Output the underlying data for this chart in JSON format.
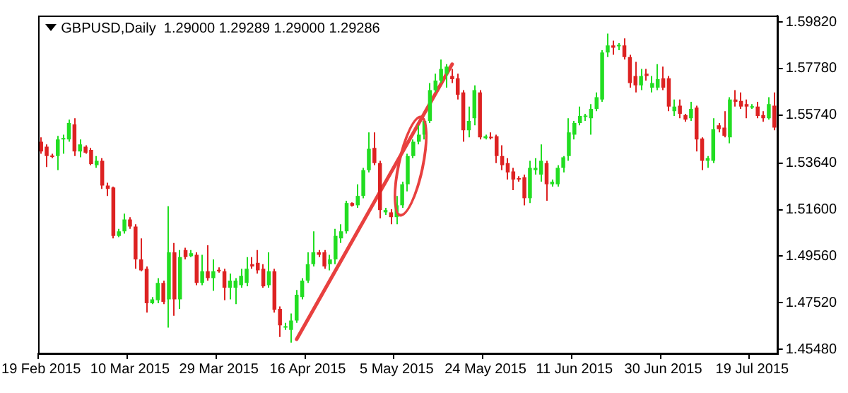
{
  "chart_data": {
    "type": "candlestick",
    "title": "GBPUSD,Daily  1.29000 1.29289 1.29000 1.29286",
    "categories": [
      "19 Feb 2015",
      null,
      null,
      null,
      null,
      null,
      null,
      null,
      null,
      null,
      null,
      null,
      null,
      null,
      null,
      null,
      "10 Mar 2015",
      null,
      null,
      null,
      null,
      null,
      null,
      null,
      null,
      null,
      null,
      null,
      null,
      null,
      null,
      null,
      "29 Mar 2015",
      null,
      null,
      null,
      null,
      null,
      null,
      null,
      null,
      null,
      null,
      null,
      null,
      null,
      null,
      null,
      "16 Apr 2015",
      null,
      null,
      null,
      null,
      null,
      null,
      null,
      null,
      null,
      null,
      null,
      null,
      null,
      null,
      null,
      "5 May 2015",
      null,
      null,
      null,
      null,
      null,
      null,
      null,
      null,
      null,
      null,
      null,
      null,
      null,
      null,
      null,
      "24 May 2015",
      null,
      null,
      null,
      null,
      null,
      null,
      null,
      null,
      null,
      null,
      null,
      null,
      null,
      null,
      null,
      "11 Jun 2015",
      null,
      null,
      null,
      null,
      null,
      null,
      null,
      null,
      null,
      null,
      null,
      null,
      null,
      null,
      null,
      "30 Jun 2015",
      null,
      null,
      null,
      null,
      null,
      null,
      null,
      null,
      null,
      null,
      null,
      null,
      null,
      null,
      null,
      "19 Jul 2015",
      null,
      null,
      null,
      null
    ],
    "ohlc": [
      [
        1.5457,
        1.5477,
        1.5405,
        1.5415
      ],
      [
        1.5436,
        1.5446,
        1.5347,
        1.5395
      ],
      [
        1.5395,
        1.5405,
        1.5385,
        1.5391
      ],
      [
        1.5395,
        1.5483,
        1.5333,
        1.5467
      ],
      [
        1.5467,
        1.5488,
        1.5405,
        1.5471
      ],
      [
        1.5467,
        1.5554,
        1.5457,
        1.5539
      ],
      [
        1.5533,
        1.556,
        1.5395,
        1.5415
      ],
      [
        1.5415,
        1.5467,
        1.5389,
        1.5446
      ],
      [
        1.5436,
        1.5442,
        1.5405,
        1.5409
      ],
      [
        1.5422,
        1.543,
        1.5354,
        1.536
      ],
      [
        1.5354,
        1.5395,
        1.5343,
        1.5374
      ],
      [
        1.5374,
        1.5385,
        1.5251,
        1.5265
      ],
      [
        1.5265,
        1.5278,
        1.522,
        1.5251
      ],
      [
        1.5257,
        1.5261,
        1.5034,
        1.5045
      ],
      [
        1.5045,
        1.5076,
        1.5039,
        1.5065
      ],
      [
        1.5065,
        1.5142,
        1.5055,
        1.5117
      ],
      [
        1.5117,
        1.5127,
        1.5076,
        1.5086
      ],
      [
        1.5086,
        1.5096,
        1.4901,
        1.4942
      ],
      [
        1.4942,
        1.5034,
        1.489,
        1.4894
      ],
      [
        1.4901,
        1.4911,
        1.4709,
        1.475
      ],
      [
        1.475,
        1.4777,
        1.4746,
        1.4767
      ],
      [
        1.4763,
        1.486,
        1.475,
        1.4839
      ],
      [
        1.4839,
        1.4849,
        1.4746,
        1.4756
      ],
      [
        1.4767,
        1.5175,
        1.4643,
        1.4973
      ],
      [
        1.4973,
        1.5014,
        1.4695,
        1.4767
      ],
      [
        1.4767,
        1.4983,
        1.4725,
        1.4952
      ],
      [
        1.4983,
        1.4993,
        1.4942,
        1.4952
      ],
      [
        1.4956,
        1.4983,
        1.4952,
        1.4969
      ],
      [
        1.4962,
        1.4973,
        1.4829,
        1.4839
      ],
      [
        1.4839,
        1.4962,
        1.4829,
        1.489
      ],
      [
        1.489,
        1.5004,
        1.4849,
        1.486
      ],
      [
        1.486,
        1.4942,
        1.4804,
        1.489
      ],
      [
        1.4894,
        1.4907,
        1.4884,
        1.489
      ],
      [
        1.489,
        1.4901,
        1.4763,
        1.4818
      ],
      [
        1.4818,
        1.488,
        1.4767,
        1.4849
      ],
      [
        1.4818,
        1.486,
        1.4746,
        1.4849
      ],
      [
        1.4829,
        1.4901,
        1.4818,
        1.487
      ],
      [
        1.4839,
        1.4952,
        1.4824,
        1.4901
      ],
      [
        1.4921,
        1.4952,
        1.4901,
        1.4911
      ],
      [
        1.4927,
        1.4983,
        1.488,
        1.4894
      ],
      [
        1.4901,
        1.4921,
        1.4818,
        1.4824
      ],
      [
        1.4829,
        1.4973,
        1.4818,
        1.489
      ],
      [
        1.489,
        1.4901,
        1.4709,
        1.4721
      ],
      [
        1.4725,
        1.4736,
        1.4602,
        1.4653
      ],
      [
        1.4643,
        1.4664,
        1.4633,
        1.4649
      ],
      [
        1.4633,
        1.4705,
        1.4577,
        1.4674
      ],
      [
        1.4674,
        1.4808,
        1.4664,
        1.4787
      ],
      [
        1.4777,
        1.486,
        1.4767,
        1.4849
      ],
      [
        1.4849,
        1.4973,
        1.4839,
        1.4921
      ],
      [
        1.4921,
        1.5065,
        1.4911,
        1.4973
      ],
      [
        1.4973,
        1.4983,
        1.4952,
        1.4962
      ],
      [
        1.4973,
        1.4983,
        1.4901,
        1.4911
      ],
      [
        1.4921,
        1.4962,
        1.4894,
        1.4942
      ],
      [
        1.4942,
        1.5076,
        1.4921,
        1.5045
      ],
      [
        1.5034,
        1.5096,
        1.5014,
        1.5065
      ],
      [
        1.5065,
        1.5199,
        1.5055,
        1.5189
      ],
      [
        1.5189,
        1.5192,
        1.5173,
        1.5177
      ],
      [
        1.5179,
        1.5271,
        1.5168,
        1.522
      ],
      [
        1.522,
        1.5343,
        1.521,
        1.5333
      ],
      [
        1.5333,
        1.5498,
        1.5323,
        1.5426
      ],
      [
        1.543,
        1.5498,
        1.5354,
        1.5364
      ],
      [
        1.5364,
        1.5374,
        1.5121,
        1.5158
      ],
      [
        1.5148,
        1.5168,
        1.5137,
        1.5158
      ],
      [
        1.5148,
        1.5162,
        1.5096,
        1.5127
      ],
      [
        1.5127,
        1.522,
        1.5096,
        1.5179
      ],
      [
        1.5179,
        1.5282,
        1.5168,
        1.5271
      ],
      [
        1.5271,
        1.5405,
        1.524,
        1.5395
      ],
      [
        1.5395,
        1.5467,
        1.5385,
        1.5457
      ],
      [
        1.5457,
        1.5529,
        1.5446,
        1.5488
      ],
      [
        1.5488,
        1.556,
        1.5467,
        1.5549
      ],
      [
        1.5549,
        1.5714,
        1.5539,
        1.5683
      ],
      [
        1.5683,
        1.5755,
        1.5673,
        1.5725
      ],
      [
        1.5725,
        1.5817,
        1.5714,
        1.5776
      ],
      [
        1.5755,
        1.5797,
        1.5694,
        1.5786
      ],
      [
        1.5745,
        1.5776,
        1.5714,
        1.5731
      ],
      [
        1.5735,
        1.5755,
        1.5642,
        1.5663
      ],
      [
        1.5673,
        1.5683,
        1.5457,
        1.5508
      ],
      [
        1.5508,
        1.5611,
        1.5477,
        1.5549
      ],
      [
        1.556,
        1.5704,
        1.5529,
        1.5683
      ],
      [
        1.5673,
        1.5683,
        1.5467,
        1.5477
      ],
      [
        1.5473,
        1.5488,
        1.5467,
        1.5481
      ],
      [
        1.5477,
        1.5498,
        1.5467,
        1.5473
      ],
      [
        1.5481,
        1.5488,
        1.5364,
        1.5395
      ],
      [
        1.5395,
        1.5442,
        1.5333,
        1.5354
      ],
      [
        1.5364,
        1.5385,
        1.5292,
        1.5323
      ],
      [
        1.5327,
        1.5343,
        1.5245,
        1.5292
      ],
      [
        1.5296,
        1.5306,
        1.5282,
        1.5292
      ],
      [
        1.5302,
        1.5313,
        1.5179,
        1.521
      ],
      [
        1.521,
        1.5374,
        1.5189,
        1.5343
      ],
      [
        1.5333,
        1.5385,
        1.5313,
        1.5343
      ],
      [
        1.5313,
        1.5446,
        1.5282,
        1.5374
      ],
      [
        1.5364,
        1.5374,
        1.5199,
        1.5271
      ],
      [
        1.5271,
        1.5292,
        1.5261,
        1.5282
      ],
      [
        1.5271,
        1.5354,
        1.5261,
        1.5343
      ],
      [
        1.5343,
        1.5395,
        1.5323,
        1.5389
      ],
      [
        1.5395,
        1.556,
        1.5374,
        1.5498
      ],
      [
        1.5488,
        1.5549,
        1.5467,
        1.5539
      ],
      [
        1.5539,
        1.5611,
        1.5529,
        1.557
      ],
      [
        1.5566,
        1.558,
        1.5549,
        1.557
      ],
      [
        1.556,
        1.5622,
        1.5488,
        1.5601
      ],
      [
        1.5601,
        1.5673,
        1.5591,
        1.5652
      ],
      [
        1.5642,
        1.5858,
        1.5632,
        1.5848
      ],
      [
        1.5848,
        1.5931,
        1.5828,
        1.5879
      ],
      [
        1.5879,
        1.59,
        1.5838,
        1.5869
      ],
      [
        1.5875,
        1.5889,
        1.5858,
        1.5879
      ],
      [
        1.5879,
        1.591,
        1.5817,
        1.5828
      ],
      [
        1.5828,
        1.5838,
        1.5694,
        1.5714
      ],
      [
        1.5745,
        1.5807,
        1.5673,
        1.5704
      ],
      [
        1.5704,
        1.5776,
        1.5683,
        1.5745
      ],
      [
        1.5755,
        1.5776,
        1.5725,
        1.5745
      ],
      [
        1.5694,
        1.5745,
        1.5673,
        1.5714
      ],
      [
        1.5694,
        1.5797,
        1.5683,
        1.5731
      ],
      [
        1.5735,
        1.5786,
        1.5683,
        1.5694
      ],
      [
        1.5735,
        1.5745,
        1.5591,
        1.5611
      ],
      [
        1.5591,
        1.5642,
        1.557,
        1.5611
      ],
      [
        1.5615,
        1.5642,
        1.556,
        1.558
      ],
      [
        1.5574,
        1.558,
        1.5545,
        1.5554
      ],
      [
        1.556,
        1.5632,
        1.5549,
        1.5601
      ],
      [
        1.5607,
        1.5615,
        1.5415,
        1.5467
      ],
      [
        1.5471,
        1.5477,
        1.5333,
        1.5374
      ],
      [
        1.5374,
        1.5395,
        1.5343,
        1.5385
      ],
      [
        1.5374,
        1.556,
        1.5364,
        1.5512
      ],
      [
        1.5529,
        1.5539,
        1.5498,
        1.5512
      ],
      [
        1.5519,
        1.5591,
        1.5477,
        1.5483
      ],
      [
        1.5477,
        1.5652,
        1.545,
        1.5642
      ],
      [
        1.5642,
        1.5683,
        1.5611,
        1.5632
      ],
      [
        1.5636,
        1.5673,
        1.5601,
        1.5611
      ],
      [
        1.5622,
        1.5642,
        1.556,
        1.5611
      ],
      [
        1.5607,
        1.5622,
        1.5601,
        1.5611
      ],
      [
        1.5611,
        1.5632,
        1.556,
        1.557
      ],
      [
        1.5574,
        1.5591,
        1.5545,
        1.556
      ],
      [
        1.556,
        1.5652,
        1.5554,
        1.5622
      ],
      [
        1.5615,
        1.5673,
        1.5508,
        1.5519
      ]
    ],
    "colors": [
      "#dd2222",
      "#dd2222",
      "#dd2222",
      "#22dd22",
      "#22dd22",
      "#22dd22",
      "#dd2222",
      "#22dd22",
      "#dd2222",
      "#dd2222",
      "#22dd22",
      "#dd2222",
      "#dd2222",
      "#dd2222",
      "#22dd22",
      "#22dd22",
      "#dd2222",
      "#dd2222",
      "#dd2222",
      "#dd2222",
      "#22dd22",
      "#22dd22",
      "#dd2222",
      "#22dd22",
      "#dd2222",
      "#22dd22",
      "#dd2222",
      "#22dd22",
      "#dd2222",
      "#22dd22",
      "#dd2222",
      "#22dd22",
      "#dd2222",
      "#dd2222",
      "#22dd22",
      "#22dd22",
      "#22dd22",
      "#22dd22",
      "#dd2222",
      "#dd2222",
      "#dd2222",
      "#22dd22",
      "#dd2222",
      "#dd2222",
      "#22dd22",
      "#22dd22",
      "#22dd22",
      "#22dd22",
      "#22dd22",
      "#22dd22",
      "#dd2222",
      "#dd2222",
      "#22dd22",
      "#22dd22",
      "#22dd22",
      "#22dd22",
      "#dd2222",
      "#22dd22",
      "#22dd22",
      "#22dd22",
      "#dd2222",
      "#dd2222",
      "#22dd22",
      "#dd2222",
      "#22dd22",
      "#22dd22",
      "#22dd22",
      "#22dd22",
      "#22dd22",
      "#22dd22",
      "#22dd22",
      "#22dd22",
      "#22dd22",
      "#22dd22",
      "#dd2222",
      "#dd2222",
      "#dd2222",
      "#22dd22",
      "#22dd22",
      "#dd2222",
      "#22dd22",
      "#dd2222",
      "#dd2222",
      "#dd2222",
      "#dd2222",
      "#dd2222",
      "#dd2222",
      "#dd2222",
      "#22dd22",
      "#22dd22",
      "#22dd22",
      "#dd2222",
      "#22dd22",
      "#22dd22",
      "#22dd22",
      "#22dd22",
      "#22dd22",
      "#22dd22",
      "#22dd22",
      "#22dd22",
      "#22dd22",
      "#22dd22",
      "#22dd22",
      "#dd2222",
      "#22dd22",
      "#dd2222",
      "#dd2222",
      "#dd2222",
      "#22dd22",
      "#dd2222",
      "#22dd22",
      "#22dd22",
      "#dd2222",
      "#dd2222",
      "#22dd22",
      "#dd2222",
      "#dd2222",
      "#22dd22",
      "#dd2222",
      "#dd2222",
      "#22dd22",
      "#22dd22",
      "#dd2222",
      "#dd2222",
      "#22dd22",
      "#dd2222",
      "#dd2222",
      "#dd2222",
      "#22dd22",
      "#dd2222",
      "#dd2222",
      "#22dd22",
      "#dd2222"
    ],
    "series": [
      {
        "type": "line",
        "color": "#e8403f",
        "values": [
          null,
          null,
          null,
          null,
          null,
          null,
          null,
          null,
          null,
          null,
          null,
          null,
          null,
          null,
          null,
          null,
          null,
          null,
          null,
          null,
          null,
          null,
          null,
          null,
          null,
          null,
          null,
          null,
          null,
          null,
          null,
          null,
          null,
          null,
          null,
          null,
          null,
          null,
          null,
          null,
          null,
          null,
          null,
          null,
          null,
          null,
          1.4592,
          null,
          null,
          null,
          null,
          null,
          null,
          null,
          null,
          null,
          null,
          null,
          null,
          null,
          null,
          null,
          null,
          null,
          null,
          null,
          null,
          null,
          null,
          null,
          null,
          null,
          null,
          null,
          1.5797,
          null,
          null,
          null,
          null,
          null,
          null,
          null,
          null,
          null,
          null,
          null,
          null,
          null,
          null,
          null,
          null,
          null,
          null,
          null,
          null,
          null,
          null,
          null,
          null,
          null,
          null,
          null,
          null,
          null,
          null,
          null,
          null,
          null,
          null,
          null,
          null,
          null,
          null,
          null,
          null,
          null,
          null,
          null,
          null,
          null,
          null,
          null,
          null,
          null,
          null,
          null,
          null,
          null,
          null,
          null,
          null,
          null,
          null
        ]
      }
    ],
    "ylim": [
      1.453,
      1.601
    ],
    "yticks": [
      {
        "value": 1.5982,
        "label": "1.59820"
      },
      {
        "value": 1.5778,
        "label": "1.57780"
      },
      {
        "value": 1.5574,
        "label": "1.55740"
      },
      {
        "value": 1.5364,
        "label": "1.53640"
      },
      {
        "value": 1.516,
        "label": "1.51600"
      },
      {
        "value": 1.4956,
        "label": "1.49560"
      },
      {
        "value": 1.4752,
        "label": "1.47520"
      },
      {
        "value": 1.4548,
        "label": "1.45480"
      }
    ]
  }
}
